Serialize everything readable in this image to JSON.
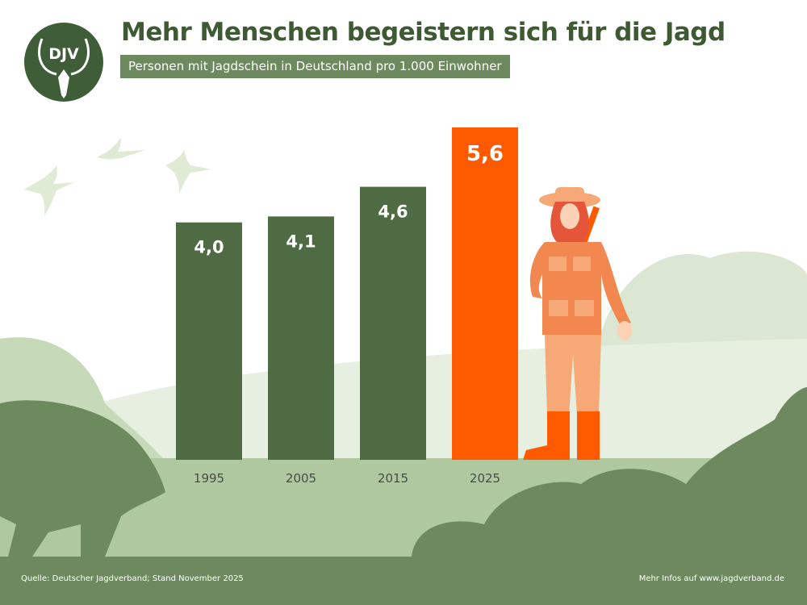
{
  "logo_text": "DJV",
  "title": "Mehr Menschen begeistern sich für die Jagd",
  "subtitle": "Personen mit Jagdschein in Deutschland pro 1.000 Einwohner",
  "footer": {
    "source": "Quelle: Deutscher Jagdverband; Stand November 2025",
    "more_info": "Mehr Infos auf www.jagdverband.de"
  },
  "colors": {
    "bar": "#4f6b43",
    "highlight": "#ff5a00",
    "ground": "#b0c8a0",
    "footer": "#6d8a5f",
    "title": "#3d5a33"
  },
  "chart_data": {
    "type": "bar",
    "title": "Mehr Menschen begeistern sich für die Jagd",
    "subtitle": "Personen mit Jagdschein in Deutschland pro 1.000 Einwohner",
    "categories": [
      "1995",
      "2005",
      "2015",
      "2025"
    ],
    "values": [
      4.0,
      4.1,
      4.6,
      5.6
    ],
    "data_labels": [
      "4,0",
      "4,1",
      "4,6",
      "5,6"
    ],
    "highlight_index": 3,
    "ylim": [
      0,
      5.6
    ],
    "grid": false,
    "xlabel": "",
    "ylabel": ""
  }
}
